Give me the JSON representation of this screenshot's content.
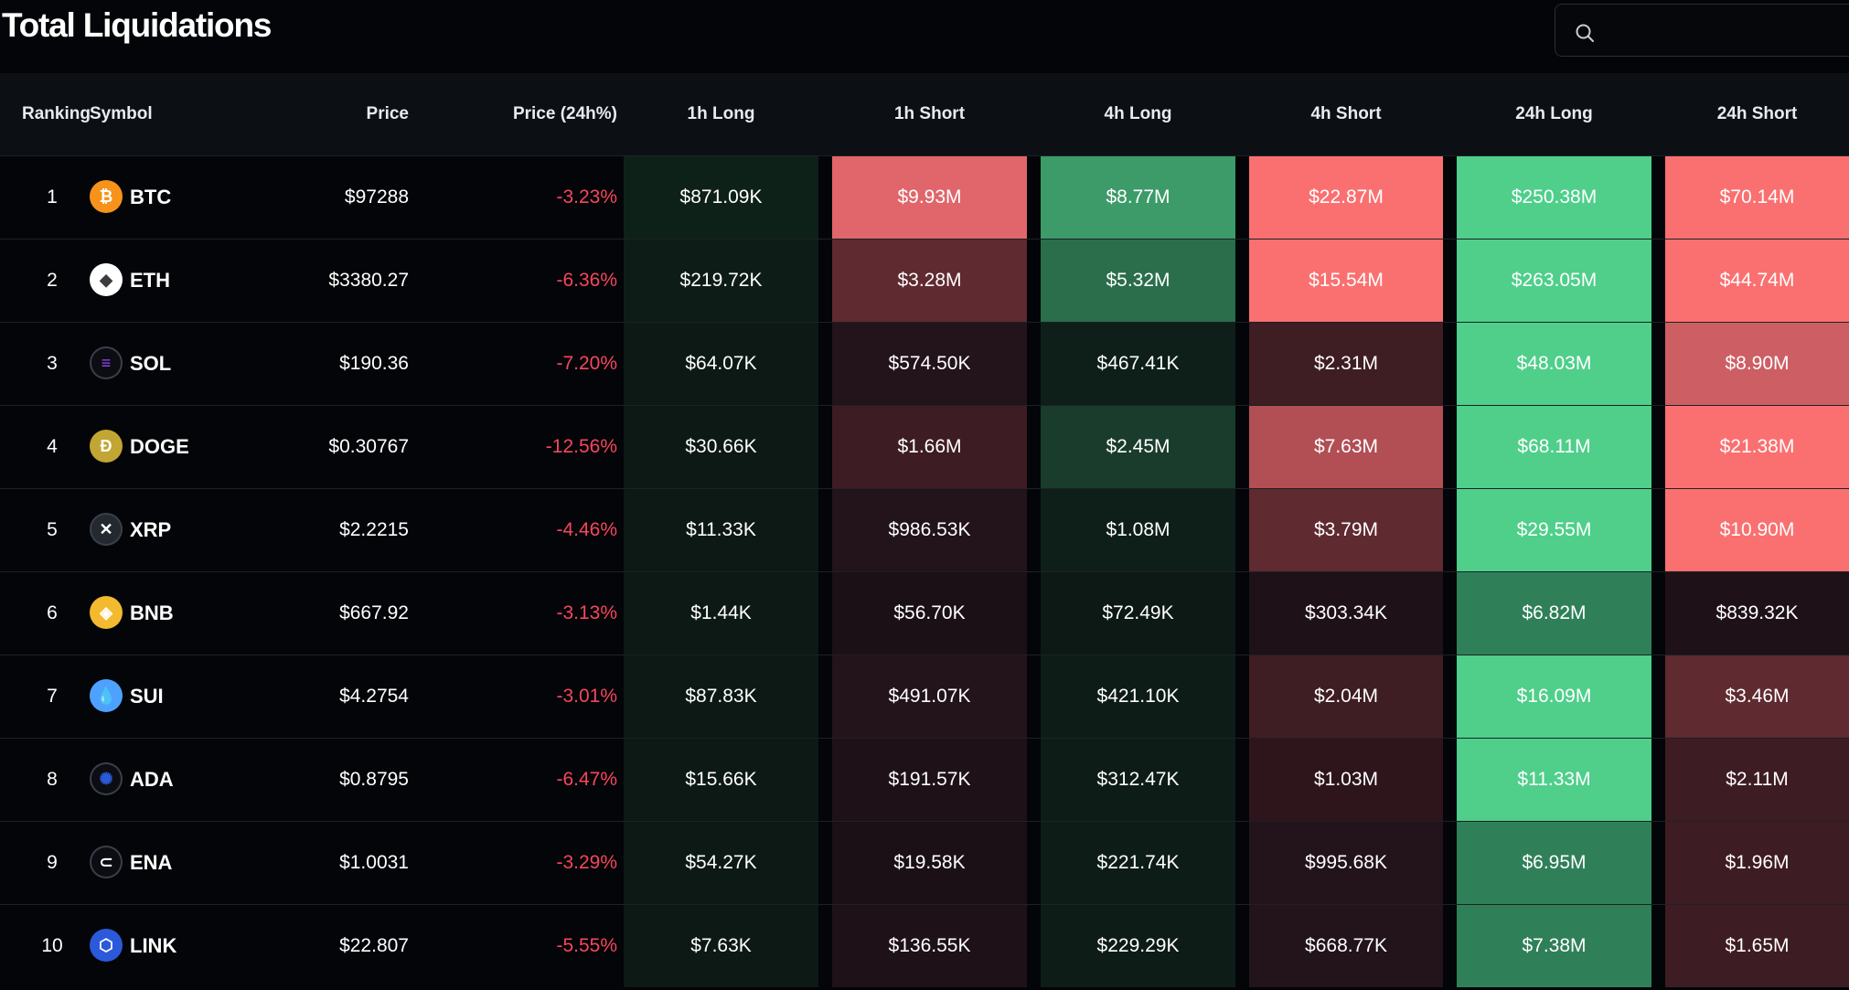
{
  "title": "Total Liquidations",
  "search": {
    "placeholder": "",
    "value": ""
  },
  "columns": [
    "Ranking",
    "Symbol",
    "Price",
    "Price (24h%)",
    "1h Long",
    "1h Short",
    "4h Long",
    "4h Short",
    "24h Long",
    "24h Short"
  ],
  "rows": [
    {
      "rank": "1",
      "symbol": "BTC",
      "price": "$97288",
      "change": "-3.23%",
      "h1_long": "$871.09K",
      "h1_short": "$9.93M",
      "h4_long": "$8.77M",
      "h4_short": "$22.87M",
      "h24_long": "$250.38M",
      "h24_short": "$70.14M"
    },
    {
      "rank": "2",
      "symbol": "ETH",
      "price": "$3380.27",
      "change": "-6.36%",
      "h1_long": "$219.72K",
      "h1_short": "$3.28M",
      "h4_long": "$5.32M",
      "h4_short": "$15.54M",
      "h24_long": "$263.05M",
      "h24_short": "$44.74M"
    },
    {
      "rank": "3",
      "symbol": "SOL",
      "price": "$190.36",
      "change": "-7.20%",
      "h1_long": "$64.07K",
      "h1_short": "$574.50K",
      "h4_long": "$467.41K",
      "h4_short": "$2.31M",
      "h24_long": "$48.03M",
      "h24_short": "$8.90M"
    },
    {
      "rank": "4",
      "symbol": "DOGE",
      "price": "$0.30767",
      "change": "-12.56%",
      "h1_long": "$30.66K",
      "h1_short": "$1.66M",
      "h4_long": "$2.45M",
      "h4_short": "$7.63M",
      "h24_long": "$68.11M",
      "h24_short": "$21.38M"
    },
    {
      "rank": "5",
      "symbol": "XRP",
      "price": "$2.2215",
      "change": "-4.46%",
      "h1_long": "$11.33K",
      "h1_short": "$986.53K",
      "h4_long": "$1.08M",
      "h4_short": "$3.79M",
      "h24_long": "$29.55M",
      "h24_short": "$10.90M"
    },
    {
      "rank": "6",
      "symbol": "BNB",
      "price": "$667.92",
      "change": "-3.13%",
      "h1_long": "$1.44K",
      "h1_short": "$56.70K",
      "h4_long": "$72.49K",
      "h4_short": "$303.34K",
      "h24_long": "$6.82M",
      "h24_short": "$839.32K"
    },
    {
      "rank": "7",
      "symbol": "SUI",
      "price": "$4.2754",
      "change": "-3.01%",
      "h1_long": "$87.83K",
      "h1_short": "$491.07K",
      "h4_long": "$421.10K",
      "h4_short": "$2.04M",
      "h24_long": "$16.09M",
      "h24_short": "$3.46M"
    },
    {
      "rank": "8",
      "symbol": "ADA",
      "price": "$0.8795",
      "change": "-6.47%",
      "h1_long": "$15.66K",
      "h1_short": "$191.57K",
      "h4_long": "$312.47K",
      "h4_short": "$1.03M",
      "h24_long": "$11.33M",
      "h24_short": "$2.11M"
    },
    {
      "rank": "9",
      "symbol": "ENA",
      "price": "$1.0031",
      "change": "-3.29%",
      "h1_long": "$54.27K",
      "h1_short": "$19.58K",
      "h4_long": "$221.74K",
      "h4_short": "$995.68K",
      "h24_long": "$6.95M",
      "h24_short": "$1.96M"
    },
    {
      "rank": "10",
      "symbol": "LINK",
      "price": "$22.807",
      "change": "-5.55%",
      "h1_long": "$7.63K",
      "h1_short": "$136.55K",
      "h4_long": "$229.29K",
      "h4_short": "$668.77K",
      "h24_long": "$7.38M",
      "h24_short": "$1.65M"
    }
  ],
  "heat_colors": {
    "1": {
      "h1_long": "#0e2119",
      "h1_short": "#e0666b",
      "h4_long": "#3c9b69",
      "h4_short": "#fa7070",
      "h24_long": "#4fcf8a",
      "h24_short": "#fa7070"
    },
    "2": {
      "h1_long": "#0d1c17",
      "h1_short": "#5f2a30",
      "h4_long": "#2a6e4c",
      "h4_short": "#fa7070",
      "h24_long": "#4fcf8a",
      "h24_short": "#fa7070"
    },
    "3": {
      "h1_long": "#0c1915",
      "h1_short": "#23131a",
      "h4_long": "#0e1f1a",
      "h4_short": "#3e1d23",
      "h24_long": "#4fcf8a",
      "h24_short": "#cd5f64"
    },
    "4": {
      "h1_long": "#0c1915",
      "h1_short": "#3e1c23",
      "h4_long": "#193c2d",
      "h4_short": "#b14f55",
      "h24_long": "#4fcf8a",
      "h24_short": "#fa7070"
    },
    "5": {
      "h1_long": "#0c1915",
      "h1_short": "#23131a",
      "h4_long": "#0e1f1a",
      "h4_short": "#5f2a30",
      "h24_long": "#4fcf8a",
      "h24_short": "#fa7070"
    },
    "6": {
      "h1_long": "#0c1915",
      "h1_short": "#1a1016",
      "h4_long": "#0c1915",
      "h4_short": "#1e1117",
      "h24_long": "#2f8059",
      "h24_short": "#1e1117"
    },
    "7": {
      "h1_long": "#0c1915",
      "h1_short": "#23131a",
      "h4_long": "#0d1c17",
      "h4_short": "#3e1d23",
      "h24_long": "#4fcf8a",
      "h24_short": "#5f2a30"
    },
    "8": {
      "h1_long": "#0c1915",
      "h1_short": "#1e1117",
      "h4_long": "#0d1c17",
      "h4_short": "#2e151c",
      "h24_long": "#4fcf8a",
      "h24_short": "#3e1c23"
    },
    "9": {
      "h1_long": "#0c1915",
      "h1_short": "#1a1016",
      "h4_long": "#0d1c17",
      "h4_short": "#23131a",
      "h24_long": "#2f8059",
      "h24_short": "#3e1c23"
    },
    "10": {
      "h1_long": "#0c1915",
      "h1_short": "#1e1117",
      "h4_long": "#0d1c17",
      "h4_short": "#23131a",
      "h24_long": "#2f8059",
      "h24_short": "#3e1c23"
    }
  },
  "coin_icons": {
    "BTC": {
      "icon": "bitcoin-icon",
      "color": "#f7931a",
      "glyph": "₿",
      "fg": "#ffffff"
    },
    "ETH": {
      "icon": "ethereum-icon",
      "color": "#ffffff",
      "glyph": "◆",
      "fg": "#3c3c3d"
    },
    "SOL": {
      "icon": "solana-icon",
      "color": "#0b0d12",
      "glyph": "≡",
      "fg": "#9945ff"
    },
    "DOGE": {
      "icon": "dogecoin-icon",
      "color": "#c2a633",
      "glyph": "Ð",
      "fg": "#ffffff"
    },
    "XRP": {
      "icon": "xrp-icon",
      "color": "#23292f",
      "glyph": "✕",
      "fg": "#ffffff"
    },
    "BNB": {
      "icon": "bnb-icon",
      "color": "#f3ba2f",
      "glyph": "◈",
      "fg": "#ffffff"
    },
    "SUI": {
      "icon": "sui-icon",
      "color": "#4da2ff",
      "glyph": "💧",
      "fg": "#ffffff"
    },
    "ADA": {
      "icon": "cardano-icon",
      "color": "#0b0d12",
      "glyph": "✺",
      "fg": "#2a5ada"
    },
    "ENA": {
      "icon": "ethena-icon",
      "color": "#0b0d12",
      "glyph": "⊂",
      "fg": "#ffffff"
    },
    "LINK": {
      "icon": "chainlink-icon",
      "color": "#2a5ada",
      "glyph": "⬡",
      "fg": "#ffffff"
    }
  },
  "colors": {
    "negative": "#f6465d",
    "header_bg": "#0c1014",
    "page_bg": "#030508"
  }
}
